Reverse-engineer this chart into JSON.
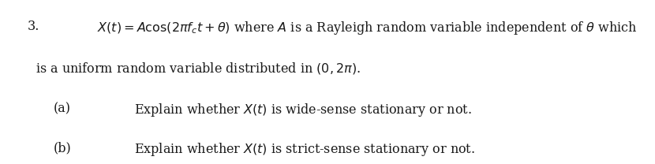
{
  "background_color": "#ffffff",
  "number": "3.",
  "line1_math": "$X(t) = A\\cos(2\\pi f_c t+\\theta)$ where $A$ is a Rayleigh random variable independent of $\\theta$ which",
  "line2_text": "is a uniform random variable distributed in $(0, 2\\pi)$.",
  "part_a_label": "(a)",
  "part_a_text": "Explain whether $X(t)$ is wide-sense stationary or not.",
  "part_b_label": "(b)",
  "part_b_text": "Explain whether $X(t)$ is strict-sense stationary or not.",
  "font_size": 11.5,
  "text_color": "#1a1a1a",
  "fig_width": 8.3,
  "fig_height": 2.08,
  "dpi": 100
}
